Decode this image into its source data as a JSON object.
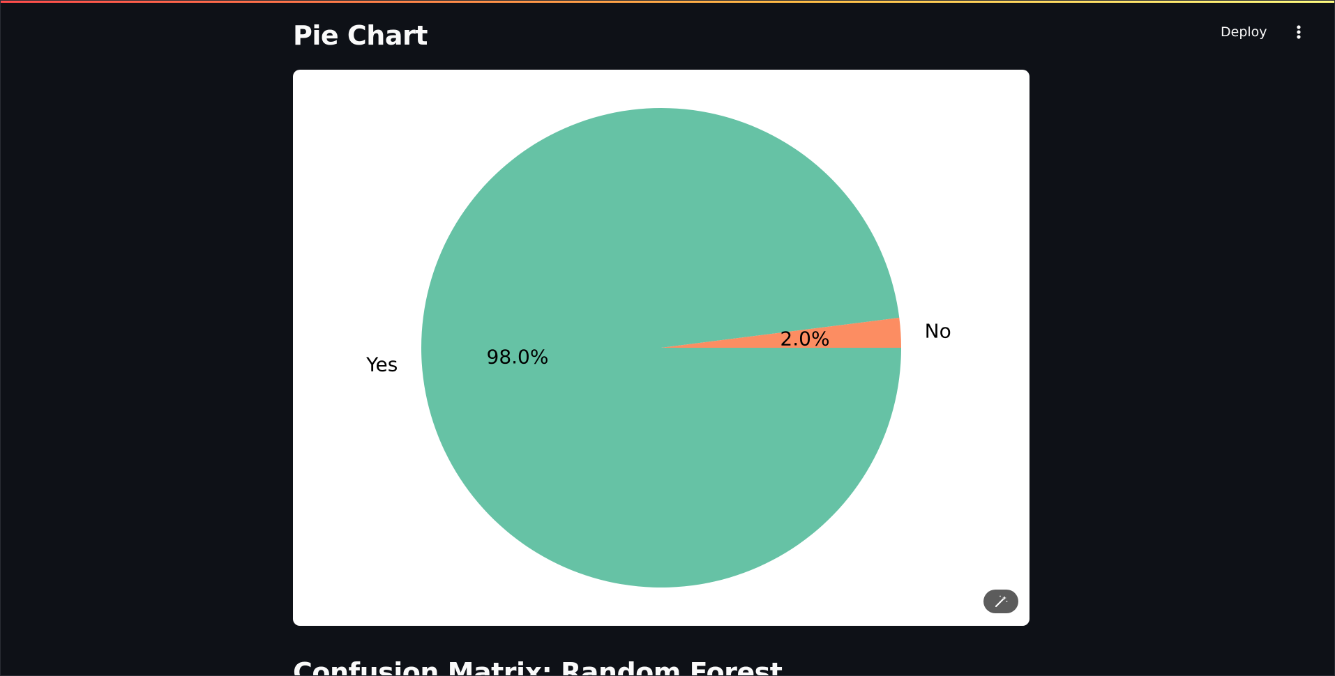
{
  "header": {
    "deploy_label": "Deploy",
    "menu_icon": "vertical-ellipsis-icon"
  },
  "main": {
    "title": "Pie Chart",
    "next_section_title": "Confusion Matrix: Random Forest"
  },
  "chart_toolbar": {
    "fullscreen_icon": "magic-wand-icon"
  },
  "chart_data": {
    "type": "pie",
    "categories": [
      "Yes",
      "No"
    ],
    "values": [
      98.0,
      2.0
    ],
    "percent_labels": [
      "98.0%",
      "2.0%"
    ],
    "colors": [
      "#66c2a5",
      "#fc8d62"
    ],
    "start_angle_deg": 0,
    "direction": "clockwise"
  }
}
